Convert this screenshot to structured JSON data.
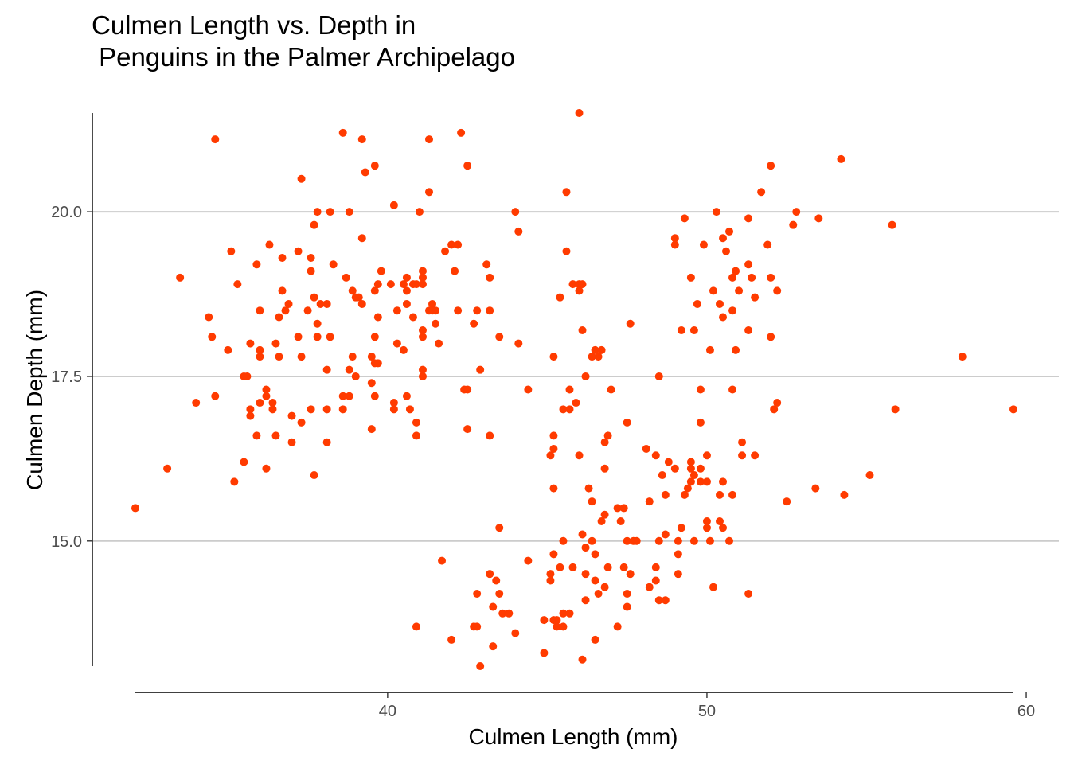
{
  "chart_data": {
    "type": "scatter",
    "title": "Culmen Length vs. Depth in\n Penguins in the Palmer Archipelago",
    "xlabel": "Culmen Length (mm)",
    "ylabel": "Culmen Depth (mm)",
    "xlim": [
      32.1,
      59.6
    ],
    "ylim": [
      13.1,
      21.5
    ],
    "xticks": [
      {
        "value": 40,
        "label": "40"
      },
      {
        "value": 50,
        "label": "50"
      },
      {
        "value": 60,
        "label": "60"
      }
    ],
    "yticks": [
      {
        "value": 15,
        "label": "15.0"
      },
      {
        "value": 17.5,
        "label": "17.5"
      },
      {
        "value": 20,
        "label": "20.0"
      }
    ],
    "grid": "horizontal major",
    "point_color": "#ff3b00",
    "points": [
      [
        32.1,
        15.5
      ],
      [
        33.1,
        16.1
      ],
      [
        33.5,
        19.0
      ],
      [
        34.0,
        17.1
      ],
      [
        34.4,
        18.4
      ],
      [
        34.5,
        18.1
      ],
      [
        34.6,
        17.2
      ],
      [
        34.6,
        21.1
      ],
      [
        35.0,
        17.9
      ],
      [
        35.1,
        19.4
      ],
      [
        35.2,
        15.9
      ],
      [
        35.3,
        18.9
      ],
      [
        35.5,
        17.5
      ],
      [
        35.5,
        16.2
      ],
      [
        35.6,
        17.5
      ],
      [
        35.7,
        16.9
      ],
      [
        35.7,
        17.0
      ],
      [
        35.7,
        18.0
      ],
      [
        35.9,
        19.2
      ],
      [
        35.9,
        16.6
      ],
      [
        36.0,
        17.1
      ],
      [
        36.0,
        17.9
      ],
      [
        36.0,
        17.8
      ],
      [
        36.0,
        18.5
      ],
      [
        36.2,
        17.3
      ],
      [
        36.2,
        17.2
      ],
      [
        36.2,
        16.1
      ],
      [
        36.3,
        19.5
      ],
      [
        36.4,
        17.0
      ],
      [
        36.4,
        17.1
      ],
      [
        36.5,
        18.0
      ],
      [
        36.5,
        16.6
      ],
      [
        36.6,
        17.8
      ],
      [
        36.6,
        18.4
      ],
      [
        36.7,
        18.8
      ],
      [
        36.7,
        19.3
      ],
      [
        36.8,
        18.5
      ],
      [
        36.9,
        18.6
      ],
      [
        37.0,
        16.5
      ],
      [
        37.0,
        16.9
      ],
      [
        37.2,
        19.4
      ],
      [
        37.2,
        18.1
      ],
      [
        37.3,
        17.8
      ],
      [
        37.3,
        20.5
      ],
      [
        37.3,
        16.8
      ],
      [
        37.5,
        18.5
      ],
      [
        37.6,
        19.3
      ],
      [
        37.6,
        17.0
      ],
      [
        37.6,
        19.1
      ],
      [
        37.7,
        16.0
      ],
      [
        37.7,
        18.7
      ],
      [
        37.7,
        19.8
      ],
      [
        37.8,
        18.1
      ],
      [
        37.8,
        18.3
      ],
      [
        37.8,
        20.0
      ],
      [
        37.9,
        18.6
      ],
      [
        38.1,
        18.6
      ],
      [
        38.1,
        17.6
      ],
      [
        38.1,
        17.0
      ],
      [
        38.1,
        16.5
      ],
      [
        38.2,
        18.1
      ],
      [
        38.2,
        20.0
      ],
      [
        38.3,
        19.2
      ],
      [
        38.6,
        21.2
      ],
      [
        38.6,
        17.0
      ],
      [
        38.6,
        17.2
      ],
      [
        38.7,
        19.0
      ],
      [
        38.8,
        17.6
      ],
      [
        38.8,
        17.2
      ],
      [
        38.8,
        20.0
      ],
      [
        38.9,
        18.8
      ],
      [
        38.9,
        17.8
      ],
      [
        39.0,
        18.7
      ],
      [
        39.0,
        17.5
      ],
      [
        39.1,
        18.7
      ],
      [
        39.2,
        19.6
      ],
      [
        39.2,
        18.6
      ],
      [
        39.2,
        21.1
      ],
      [
        39.3,
        20.6
      ],
      [
        39.5,
        17.4
      ],
      [
        39.5,
        16.7
      ],
      [
        39.5,
        17.8
      ],
      [
        39.6,
        18.8
      ],
      [
        39.6,
        18.1
      ],
      [
        39.6,
        17.7
      ],
      [
        39.6,
        20.7
      ],
      [
        39.6,
        17.2
      ],
      [
        39.7,
        18.4
      ],
      [
        39.7,
        17.7
      ],
      [
        39.7,
        18.9
      ],
      [
        39.8,
        19.1
      ],
      [
        40.1,
        18.9
      ],
      [
        40.2,
        17.0
      ],
      [
        40.2,
        17.1
      ],
      [
        40.2,
        20.1
      ],
      [
        40.3,
        18.0
      ],
      [
        40.3,
        18.5
      ],
      [
        40.5,
        18.9
      ],
      [
        40.5,
        17.9
      ],
      [
        40.6,
        18.6
      ],
      [
        40.6,
        19.0
      ],
      [
        40.6,
        18.8
      ],
      [
        40.6,
        17.2
      ],
      [
        40.7,
        17.0
      ],
      [
        40.8,
        18.4
      ],
      [
        40.8,
        18.9
      ],
      [
        40.9,
        16.6
      ],
      [
        40.9,
        16.8
      ],
      [
        40.9,
        18.9
      ],
      [
        41.0,
        20.0
      ],
      [
        41.1,
        17.5
      ],
      [
        41.1,
        17.6
      ],
      [
        41.1,
        18.2
      ],
      [
        41.1,
        19.0
      ],
      [
        41.1,
        18.1
      ],
      [
        41.1,
        18.9
      ],
      [
        41.1,
        19.1
      ],
      [
        41.3,
        20.3
      ],
      [
        41.3,
        21.1
      ],
      [
        41.3,
        18.5
      ],
      [
        41.4,
        18.6
      ],
      [
        41.4,
        18.5
      ],
      [
        41.5,
        18.5
      ],
      [
        41.5,
        18.3
      ],
      [
        41.6,
        18.0
      ],
      [
        41.8,
        19.4
      ],
      [
        42.0,
        19.5
      ],
      [
        42.1,
        19.1
      ],
      [
        42.2,
        18.5
      ],
      [
        42.2,
        19.5
      ],
      [
        42.3,
        21.2
      ],
      [
        42.4,
        17.3
      ],
      [
        42.5,
        16.7
      ],
      [
        42.5,
        17.3
      ],
      [
        42.5,
        20.7
      ],
      [
        42.7,
        18.3
      ],
      [
        42.8,
        18.5
      ],
      [
        42.9,
        17.6
      ],
      [
        43.1,
        19.2
      ],
      [
        43.2,
        16.6
      ],
      [
        43.2,
        18.5
      ],
      [
        43.2,
        19.0
      ],
      [
        43.5,
        18.1
      ],
      [
        44.0,
        20.0
      ],
      [
        44.1,
        19.7
      ],
      [
        44.1,
        18.0
      ],
      [
        44.4,
        17.3
      ],
      [
        45.2,
        17.8
      ],
      [
        45.4,
        18.7
      ],
      [
        45.6,
        20.3
      ],
      [
        45.7,
        17.3
      ],
      [
        45.8,
        18.9
      ],
      [
        46.0,
        18.9
      ],
      [
        46.1,
        18.2
      ],
      [
        46.2,
        17.5
      ],
      [
        46.4,
        17.8
      ],
      [
        46.5,
        17.9
      ],
      [
        46.6,
        17.8
      ],
      [
        46.7,
        17.9
      ],
      [
        46.8,
        16.5
      ],
      [
        46.9,
        16.6
      ],
      [
        47.0,
        17.3
      ],
      [
        47.5,
        16.8
      ],
      [
        47.6,
        18.3
      ],
      [
        48.1,
        16.4
      ],
      [
        48.5,
        17.5
      ],
      [
        49.0,
        19.5
      ],
      [
        49.0,
        19.6
      ],
      [
        49.2,
        18.2
      ],
      [
        49.3,
        19.9
      ],
      [
        49.5,
        19.0
      ],
      [
        49.6,
        18.2
      ],
      [
        49.7,
        18.6
      ],
      [
        49.8,
        17.3
      ],
      [
        49.8,
        16.8
      ],
      [
        49.9,
        19.5
      ],
      [
        50.1,
        17.9
      ],
      [
        50.2,
        18.8
      ],
      [
        50.3,
        20.0
      ],
      [
        50.4,
        18.6
      ],
      [
        50.5,
        19.6
      ],
      [
        50.5,
        18.4
      ],
      [
        50.6,
        19.4
      ],
      [
        50.7,
        19.7
      ],
      [
        50.8,
        19.0
      ],
      [
        50.8,
        18.5
      ],
      [
        50.8,
        17.3
      ],
      [
        50.9,
        19.1
      ],
      [
        50.9,
        17.9
      ],
      [
        51.0,
        18.8
      ],
      [
        51.3,
        19.9
      ],
      [
        51.3,
        19.2
      ],
      [
        51.3,
        18.2
      ],
      [
        51.4,
        19.0
      ],
      [
        51.5,
        18.7
      ],
      [
        51.7,
        20.3
      ],
      [
        51.9,
        19.5
      ],
      [
        52.0,
        19.0
      ],
      [
        52.0,
        18.1
      ],
      [
        52.0,
        20.7
      ],
      [
        52.1,
        17.0
      ],
      [
        52.2,
        18.8
      ],
      [
        52.2,
        17.1
      ],
      [
        52.7,
        19.8
      ],
      [
        52.8,
        20.0
      ],
      [
        53.5,
        19.9
      ],
      [
        54.2,
        20.8
      ],
      [
        55.8,
        19.8
      ],
      [
        58.0,
        17.8
      ],
      [
        40.9,
        13.7
      ],
      [
        41.7,
        14.7
      ],
      [
        42.0,
        13.5
      ],
      [
        42.7,
        13.7
      ],
      [
        42.8,
        14.2
      ],
      [
        42.8,
        13.7
      ],
      [
        42.9,
        13.1
      ],
      [
        43.2,
        14.5
      ],
      [
        43.3,
        13.4
      ],
      [
        43.3,
        14.0
      ],
      [
        43.4,
        14.4
      ],
      [
        43.5,
        14.2
      ],
      [
        43.5,
        15.2
      ],
      [
        43.6,
        13.9
      ],
      [
        43.8,
        13.9
      ],
      [
        44.0,
        13.6
      ],
      [
        44.4,
        14.7
      ],
      [
        44.9,
        13.8
      ],
      [
        44.9,
        13.3
      ],
      [
        45.1,
        14.5
      ],
      [
        45.1,
        14.4
      ],
      [
        45.2,
        13.8
      ],
      [
        45.2,
        14.8
      ],
      [
        45.2,
        15.8
      ],
      [
        45.2,
        16.4
      ],
      [
        45.2,
        16.6
      ],
      [
        45.3,
        13.7
      ],
      [
        45.3,
        13.8
      ],
      [
        45.4,
        14.6
      ],
      [
        45.5,
        15.0
      ],
      [
        45.5,
        13.9
      ],
      [
        45.5,
        13.7
      ],
      [
        45.5,
        17.0
      ],
      [
        45.7,
        13.9
      ],
      [
        45.7,
        17.0
      ],
      [
        45.8,
        14.6
      ],
      [
        45.9,
        17.1
      ],
      [
        46.1,
        13.2
      ],
      [
        46.1,
        15.1
      ],
      [
        46.2,
        14.5
      ],
      [
        46.2,
        14.9
      ],
      [
        46.2,
        14.1
      ],
      [
        46.3,
        15.8
      ],
      [
        46.4,
        15.0
      ],
      [
        46.4,
        15.6
      ],
      [
        46.5,
        14.4
      ],
      [
        46.5,
        14.8
      ],
      [
        46.5,
        13.5
      ],
      [
        46.6,
        14.2
      ],
      [
        46.7,
        15.3
      ],
      [
        46.8,
        14.3
      ],
      [
        46.8,
        15.4
      ],
      [
        46.8,
        16.1
      ],
      [
        46.9,
        14.6
      ],
      [
        47.2,
        15.5
      ],
      [
        47.2,
        13.7
      ],
      [
        47.3,
        15.3
      ],
      [
        47.4,
        14.6
      ],
      [
        47.5,
        14.2
      ],
      [
        47.5,
        15.0
      ],
      [
        47.5,
        14.0
      ],
      [
        47.6,
        14.5
      ],
      [
        47.7,
        15.0
      ],
      [
        47.8,
        15.0
      ],
      [
        48.2,
        14.3
      ],
      [
        48.2,
        15.6
      ],
      [
        48.4,
        14.4
      ],
      [
        48.4,
        14.6
      ],
      [
        48.4,
        16.3
      ],
      [
        48.5,
        14.1
      ],
      [
        48.5,
        15.0
      ],
      [
        48.6,
        16.0
      ],
      [
        48.7,
        15.1
      ],
      [
        48.7,
        15.7
      ],
      [
        48.7,
        14.1
      ],
      [
        48.8,
        16.2
      ],
      [
        49.0,
        16.1
      ],
      [
        49.1,
        14.5
      ],
      [
        49.1,
        14.8
      ],
      [
        49.1,
        15.0
      ],
      [
        49.2,
        15.2
      ],
      [
        49.3,
        15.7
      ],
      [
        49.4,
        15.8
      ],
      [
        49.5,
        15.9
      ],
      [
        49.5,
        16.1
      ],
      [
        49.5,
        16.2
      ],
      [
        49.6,
        15.0
      ],
      [
        49.6,
        16.0
      ],
      [
        49.8,
        15.9
      ],
      [
        49.8,
        16.1
      ],
      [
        50.0,
        15.2
      ],
      [
        50.0,
        15.3
      ],
      [
        50.0,
        15.9
      ],
      [
        50.0,
        16.3
      ],
      [
        50.1,
        15.0
      ],
      [
        50.2,
        14.3
      ],
      [
        50.4,
        15.7
      ],
      [
        50.4,
        15.3
      ],
      [
        50.5,
        15.9
      ],
      [
        50.5,
        15.2
      ],
      [
        50.7,
        15.0
      ],
      [
        50.8,
        15.7
      ],
      [
        51.1,
        16.5
      ],
      [
        51.1,
        16.3
      ],
      [
        51.3,
        14.2
      ],
      [
        51.5,
        16.3
      ],
      [
        52.5,
        15.6
      ],
      [
        53.4,
        15.8
      ],
      [
        54.3,
        15.7
      ],
      [
        55.1,
        16.0
      ],
      [
        55.9,
        17.0
      ],
      [
        59.6,
        17.0
      ],
      [
        45.1,
        16.3
      ],
      [
        46.0,
        16.3
      ],
      [
        47.4,
        15.5
      ],
      [
        45.6,
        19.4
      ],
      [
        46.0,
        21.5
      ],
      [
        46.1,
        18.9
      ],
      [
        46.0,
        18.8
      ]
    ]
  }
}
